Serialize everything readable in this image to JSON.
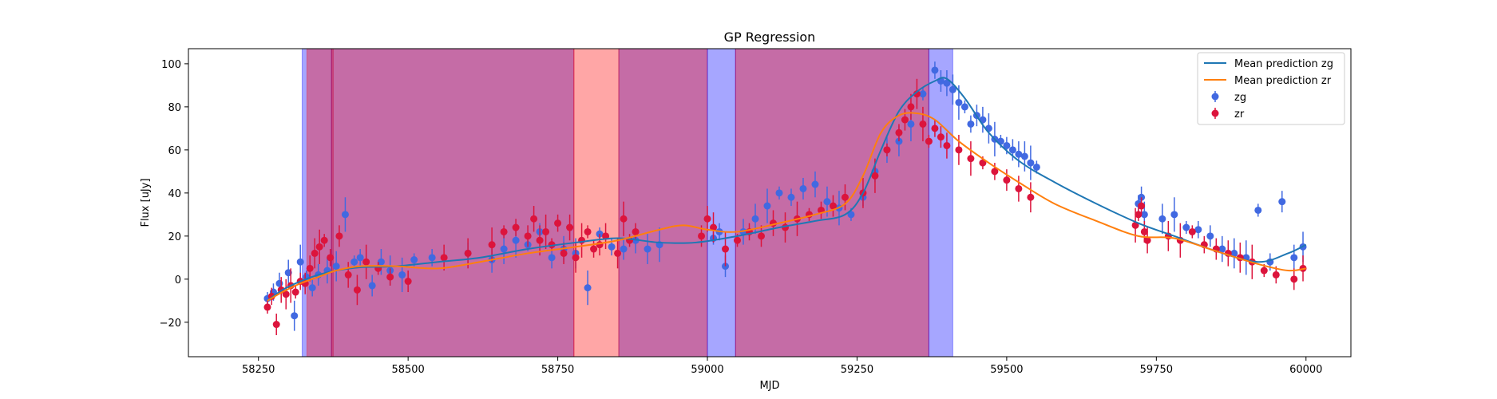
{
  "chart_data": {
    "type": "scatter",
    "title": "GP Regression",
    "xlabel": "MJD",
    "ylabel": "Flux [uJy]",
    "xlim": [
      58133,
      60075
    ],
    "ylim": [
      -36,
      107
    ],
    "x_ticks": [
      58250,
      58500,
      58750,
      59000,
      59250,
      59500,
      59750,
      60000
    ],
    "y_ticks": [
      -20,
      0,
      20,
      40,
      60,
      80,
      100
    ],
    "grid": false,
    "legend_position": "top-right",
    "legend": [
      {
        "label": "Mean prediction zg",
        "kind": "line",
        "color": "#1f77b4"
      },
      {
        "label": "Mean prediction zr",
        "kind": "line",
        "color": "#ff7f0e"
      },
      {
        "label": "zg",
        "kind": "marker",
        "color": "#4169e1"
      },
      {
        "label": "zr",
        "kind": "marker",
        "color": "#dc143c"
      }
    ],
    "shaded_regions": [
      {
        "band": "zg",
        "x": [
          58323,
          58372
        ],
        "color": "#0000ff"
      },
      {
        "band": "zr",
        "x": [
          58331,
          58375
        ],
        "color": "#ff0000"
      },
      {
        "band": "zg",
        "x": [
          58372,
          58777
        ],
        "color": "#0000ff"
      },
      {
        "band": "zr",
        "x": [
          58372,
          58777
        ],
        "color": "#ff0000"
      },
      {
        "band": "zr",
        "x": [
          58777,
          58852
        ],
        "color": "#ff0000"
      },
      {
        "band": "zg",
        "x": [
          58852,
          59000
        ],
        "color": "#0000ff"
      },
      {
        "band": "zr",
        "x": [
          58852,
          59000
        ],
        "color": "#ff0000"
      },
      {
        "band": "zg",
        "x": [
          59000,
          59047
        ],
        "color": "#0000ff"
      },
      {
        "band": "zg",
        "x": [
          59047,
          59370
        ],
        "color": "#0000ff"
      },
      {
        "band": "zr",
        "x": [
          59047,
          59370
        ],
        "color": "#ff0000"
      },
      {
        "band": "zg",
        "x": [
          59370,
          59410
        ],
        "color": "#0000ff"
      }
    ],
    "series": [
      {
        "name": "Mean prediction zg",
        "type": "line",
        "color": "#1f77b4",
        "x": [
          58265,
          58290,
          58320,
          58350,
          58380,
          58420,
          58480,
          58550,
          58620,
          58700,
          58780,
          58850,
          58920,
          58980,
          59050,
          59120,
          59180,
          59230,
          59260,
          59290,
          59320,
          59350,
          59380,
          59400,
          59430,
          59470,
          59520,
          59580,
          59650,
          59720,
          59780,
          59850,
          59920,
          59970,
          60000
        ],
        "y": [
          -10,
          -5,
          -1,
          2,
          4,
          5.5,
          6,
          8,
          10,
          14,
          17,
          19,
          17,
          17,
          20,
          24,
          27,
          30,
          40,
          60,
          78,
          87,
          92,
          93,
          84,
          68,
          55,
          45,
          35,
          26,
          20,
          13,
          8,
          12,
          16
        ]
      },
      {
        "name": "Mean prediction zr",
        "type": "line",
        "color": "#ff7f0e",
        "x": [
          58265,
          58290,
          58320,
          58350,
          58380,
          58420,
          58480,
          58550,
          58620,
          58700,
          58780,
          58850,
          58920,
          58960,
          59000,
          59050,
          59120,
          59180,
          59230,
          59260,
          59290,
          59320,
          59350,
          59380,
          59420,
          59470,
          59520,
          59580,
          59650,
          59720,
          59780,
          59850,
          59920,
          59970,
          60000
        ],
        "y": [
          -10,
          -6,
          -2,
          1,
          4,
          6,
          6,
          5,
          8,
          12,
          15,
          18,
          23,
          25,
          23,
          22,
          26,
          30,
          35,
          48,
          68,
          76,
          77,
          74,
          64,
          54,
          45,
          35,
          27,
          20,
          19,
          13,
          7,
          4,
          5
        ]
      },
      {
        "name": "zg",
        "type": "errorbar",
        "color": "#4169e1",
        "x": [
          58265,
          58275,
          58285,
          58300,
          58310,
          58320,
          58330,
          58340,
          58350,
          58365,
          58380,
          58395,
          58410,
          58420,
          58440,
          58455,
          58470,
          58490,
          58510,
          58540,
          58600,
          58640,
          58660,
          58680,
          58700,
          58720,
          58740,
          58760,
          58780,
          58800,
          58820,
          58840,
          58860,
          58880,
          58900,
          58920,
          59010,
          59020,
          59030,
          59060,
          59080,
          59100,
          59120,
          59140,
          59160,
          59180,
          59200,
          59220,
          59240,
          59260,
          59280,
          59300,
          59320,
          59340,
          59360,
          59380,
          59390,
          59400,
          59410,
          59420,
          59430,
          59440,
          59450,
          59460,
          59470,
          59480,
          59490,
          59500,
          59510,
          59520,
          59530,
          59540,
          59550,
          59720,
          59725,
          59730,
          59760,
          59780,
          59800,
          59820,
          59840,
          59860,
          59880,
          59900,
          59920,
          59940,
          59960,
          59980,
          59995
        ],
        "y": [
          -9,
          -6,
          -2,
          3,
          -17,
          8,
          1,
          -4,
          2,
          4,
          6,
          30,
          8,
          10,
          -3,
          8,
          4,
          2,
          9,
          10,
          12,
          9,
          14,
          18,
          16,
          22,
          10,
          14,
          12,
          -4,
          21,
          15,
          14,
          18,
          14,
          16,
          19,
          22,
          6,
          22,
          28,
          34,
          40,
          38,
          42,
          44,
          36,
          33,
          30,
          38,
          50,
          60,
          64,
          72,
          86,
          97,
          92,
          91,
          88,
          82,
          80,
          72,
          76,
          74,
          70,
          65,
          64,
          62,
          60,
          58,
          57,
          54,
          52,
          35,
          38,
          30,
          28,
          30,
          24,
          23,
          20,
          14,
          12,
          10,
          32,
          8,
          36,
          10,
          15
        ]
      },
      {
        "name": "zr",
        "type": "errorbar",
        "color": "#dc143c",
        "x": [
          58265,
          58272,
          58280,
          58288,
          58296,
          58304,
          58312,
          58320,
          58328,
          58336,
          58344,
          58352,
          58360,
          58370,
          58385,
          58400,
          58415,
          58430,
          58450,
          58470,
          58500,
          58560,
          58600,
          58640,
          58660,
          58680,
          58700,
          58710,
          58720,
          58730,
          58740,
          58750,
          58760,
          58770,
          58780,
          58790,
          58800,
          58810,
          58820,
          58830,
          58850,
          58860,
          58870,
          58880,
          58990,
          59000,
          59010,
          59030,
          59050,
          59070,
          59090,
          59110,
          59130,
          59150,
          59170,
          59190,
          59210,
          59230,
          59260,
          59280,
          59300,
          59320,
          59330,
          59340,
          59350,
          59360,
          59370,
          59380,
          59390,
          59400,
          59420,
          59440,
          59460,
          59480,
          59500,
          59520,
          59540,
          59715,
          59720,
          59725,
          59730,
          59735,
          59770,
          59790,
          59810,
          59830,
          59850,
          59870,
          59890,
          59910,
          59930,
          59950,
          59980,
          59995
        ],
        "y": [
          -13,
          -8,
          -21,
          -5,
          -7,
          -3,
          -6,
          -1,
          -2,
          5,
          12,
          15,
          18,
          10,
          20,
          2,
          -5,
          8,
          5,
          1,
          -1,
          10,
          12,
          16,
          22,
          24,
          20,
          28,
          18,
          22,
          16,
          26,
          12,
          24,
          10,
          18,
          22,
          14,
          16,
          20,
          12,
          28,
          18,
          22,
          20,
          28,
          24,
          14,
          18,
          22,
          20,
          26,
          24,
          28,
          30,
          32,
          34,
          38,
          40,
          48,
          60,
          68,
          74,
          80,
          86,
          72,
          64,
          70,
          66,
          62,
          60,
          56,
          54,
          50,
          46,
          42,
          38,
          25,
          30,
          34,
          22,
          18,
          20,
          18,
          22,
          16,
          14,
          12,
          10,
          8,
          4,
          2,
          0,
          5
        ]
      }
    ]
  }
}
